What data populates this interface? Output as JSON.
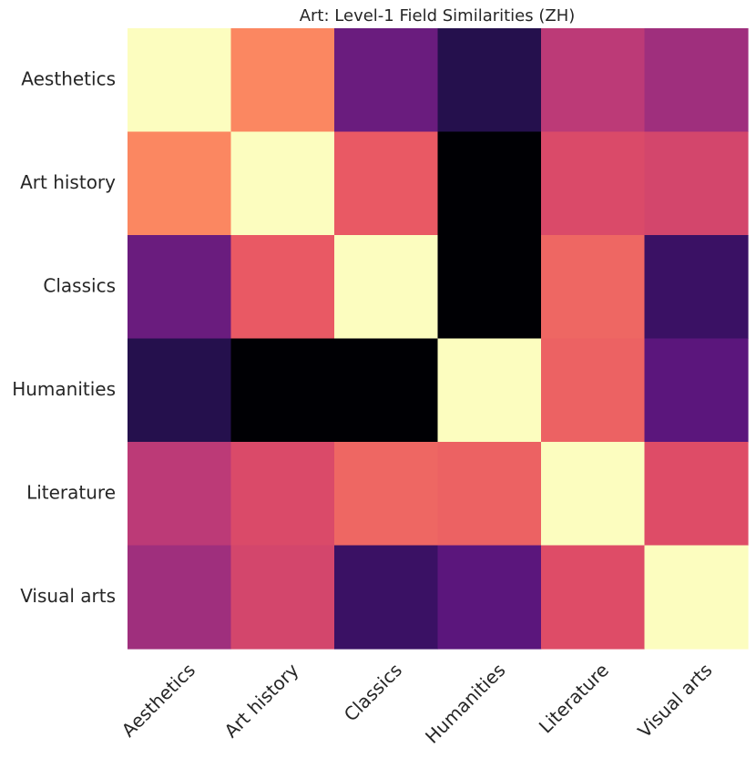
{
  "chart_data": {
    "type": "heatmap",
    "title": "Art: Level-1 Field Similarities (ZH)",
    "xlabel": "",
    "ylabel": "",
    "categories": [
      "Aesthetics",
      "Art history",
      "Classics",
      "Humanities",
      "Literature",
      "Visual arts"
    ],
    "x_tick_labels": [
      "Aesthetics",
      "Art history",
      "Classics",
      "Humanities",
      "Literature",
      "Visual arts"
    ],
    "y_tick_labels": [
      "Aesthetics",
      "Art history",
      "Classics",
      "Humanities",
      "Literature",
      "Visual arts"
    ],
    "colormap": "magma",
    "value_range": [
      0,
      1
    ],
    "values": [
      [
        1.0,
        0.75,
        0.32,
        0.15,
        0.52,
        0.45
      ],
      [
        0.75,
        1.0,
        0.65,
        0.0,
        0.6,
        0.58
      ],
      [
        0.32,
        0.65,
        1.0,
        0.0,
        0.68,
        0.2
      ],
      [
        0.15,
        0.0,
        0.0,
        1.0,
        0.67,
        0.28
      ],
      [
        0.52,
        0.6,
        0.68,
        0.67,
        1.0,
        0.61
      ],
      [
        0.45,
        0.58,
        0.2,
        0.28,
        0.61,
        1.0
      ]
    ],
    "grid": false,
    "legend": "none"
  }
}
